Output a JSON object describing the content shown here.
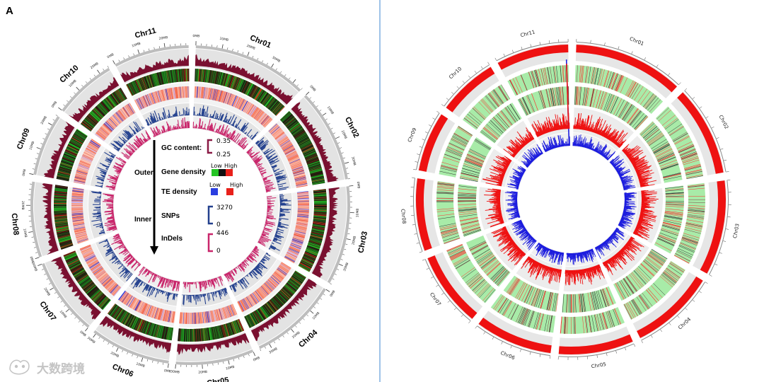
{
  "panel_label": "A",
  "watermark": "大数跨境",
  "colors": {
    "dark_red": "#7a1030",
    "green": "#25c525",
    "black": "#111111",
    "red": "#e8201a",
    "te_red": "#f25a3c",
    "te_light": "#fbd0c2",
    "te_blue": "#2a3ee0",
    "te_lavender": "#c6b3f0",
    "snp": "#23408e",
    "indel": "#c9266b",
    "ring_bg": "#e3e3e3",
    "circos_red": "#ee1111",
    "circos_green": "#a8eba8",
    "circos_blue": "#1d1dde",
    "divider": "#9ec3e8"
  },
  "chart_data": [
    {
      "type": "circos",
      "title": "",
      "chromosomes": [
        "Chr01",
        "Chr02",
        "Chr03",
        "Chr04",
        "Chr05",
        "Chr06",
        "Chr07",
        "Chr08",
        "Chr09",
        "Chr10",
        "Chr11"
      ],
      "chromosome_lengths_mb": [
        44,
        36,
        38,
        34,
        30,
        31,
        30,
        29,
        24,
        24,
        29
      ],
      "tick_labels": [
        "0MB",
        "10MB",
        "20MB",
        "30MB"
      ],
      "tracks_outer_to_inner": [
        "GC content",
        "Gene density",
        "TE density",
        "SNPs",
        "InDels"
      ],
      "legend": {
        "outer_label": "Outer",
        "inner_label": "Inner",
        "gc_content": {
          "label": "GC content:",
          "max": 0.35,
          "min": 0.25
        },
        "gene_density": {
          "label": "Gene density",
          "low": "Low",
          "high": "High"
        },
        "te_density": {
          "label": "TE density",
          "low": "Low",
          "high": "High"
        },
        "snps": {
          "label": "SNPs",
          "max": 3270,
          "min": 0
        },
        "indels": {
          "label": "InDels",
          "max": 446,
          "min": 0
        }
      }
    },
    {
      "type": "circos",
      "title": "",
      "chromosomes": [
        "Chr01",
        "Chr02",
        "Chr03",
        "Chr04",
        "Chr05",
        "Chr06",
        "Chr07",
        "Chr08",
        "Chr09",
        "Chr10",
        "Chr11"
      ],
      "chromosome_lengths_mb": [
        44,
        36,
        38,
        34,
        30,
        31,
        30,
        29,
        24,
        24,
        29
      ],
      "tracks_outer_to_inner": [
        "density bars",
        "heatmap track",
        "heatmap track",
        "histogram (red)",
        "histogram (blue)"
      ],
      "peaks": [
        {
          "chromosome": "Chr11",
          "position_fraction": 0.97,
          "track": "histogram (blue)"
        },
        {
          "chromosome": "Chr11",
          "position_fraction": 0.97,
          "track": "histogram (red)"
        },
        {
          "chromosome": "Chr09",
          "position_fraction": 0.1,
          "track": "histogram (red)"
        }
      ]
    }
  ]
}
